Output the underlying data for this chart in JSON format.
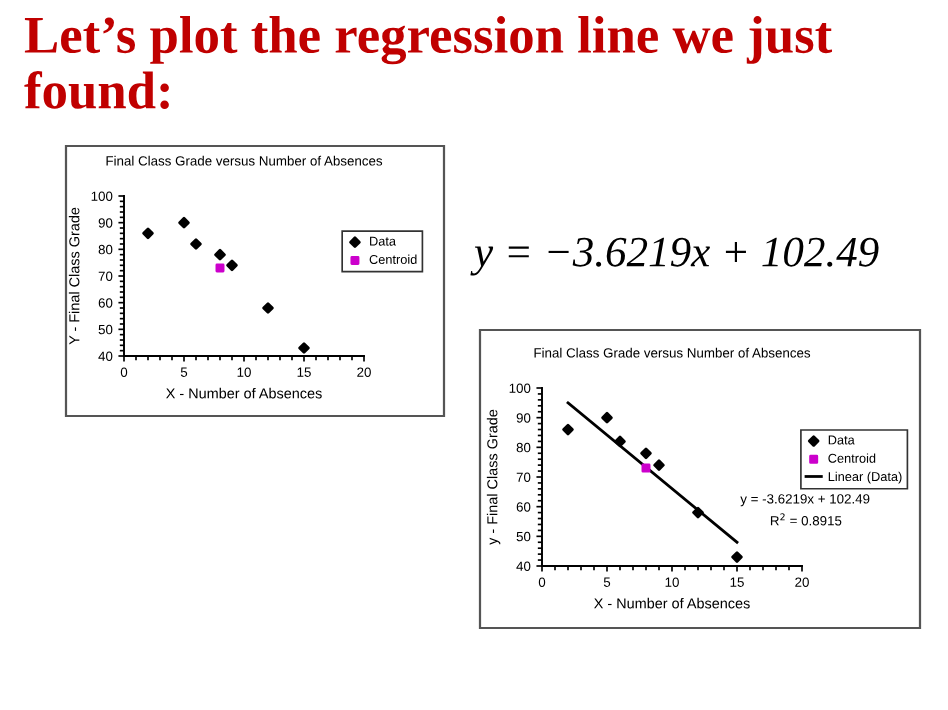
{
  "chart_data": [
    {
      "type": "scatter",
      "title": "Final Class Grade versus Number of Absences",
      "xlabel": "X - Number of Absences",
      "ylabel": "Y - Final Class Grade",
      "annotations": [
        "Let’s plot the regression line we just found:"
      ],
      "series": [
        {
          "name": "Data",
          "color": "#000000",
          "marker": "diamond",
          "x": [
            2,
            5,
            6,
            8,
            9,
            12,
            15
          ],
          "values": [
            86,
            90,
            82,
            78,
            74,
            58,
            43
          ]
        },
        {
          "name": "Centroid",
          "color": "#cc00cc",
          "marker": "square",
          "x": [
            8
          ],
          "values": [
            73
          ]
        }
      ],
      "xlim": [
        0,
        20
      ],
      "xticks": [
        0,
        5,
        10,
        15,
        20
      ],
      "ylim": [
        40,
        100
      ],
      "yticks": [
        40,
        50,
        60,
        70,
        80,
        90,
        100
      ],
      "grid": false,
      "legend": "top right"
    },
    {
      "type": "scatter",
      "title": "Final Class Grade versus Number of Absences",
      "xlabel": "X - Number of Absences",
      "ylabel": "y - Final Class Grade",
      "annotations": [
        "y = -3.6219x + 102.49",
        "R$^{2}$ = 0.8915",
        "y = −3.6219x + 102.49"
      ],
      "series": [
        {
          "name": "Data",
          "color": "#000000",
          "marker": "diamond",
          "x": [
            2,
            5,
            6,
            8,
            9,
            12,
            15
          ],
          "values": [
            86,
            90,
            82,
            78,
            74,
            58,
            43
          ]
        },
        {
          "name": "Centroid",
          "color": "#cc00cc",
          "marker": "square",
          "x": [
            8
          ],
          "values": [
            73
          ]
        },
        {
          "name": "Linear (Data)",
          "type": "line",
          "color": "#000000",
          "marker": "none",
          "line_style": "solid",
          "x": [
            2,
            15
          ],
          "values": [
            95,
            48
          ]
        }
      ],
      "xlim": [
        0,
        20
      ],
      "xticks": [
        0,
        5,
        10,
        15,
        20
      ],
      "ylim": [
        40,
        100
      ],
      "yticks": [
        40,
        50,
        60,
        70,
        80,
        90,
        100
      ],
      "grid": false,
      "legend": "right"
    }
  ]
}
